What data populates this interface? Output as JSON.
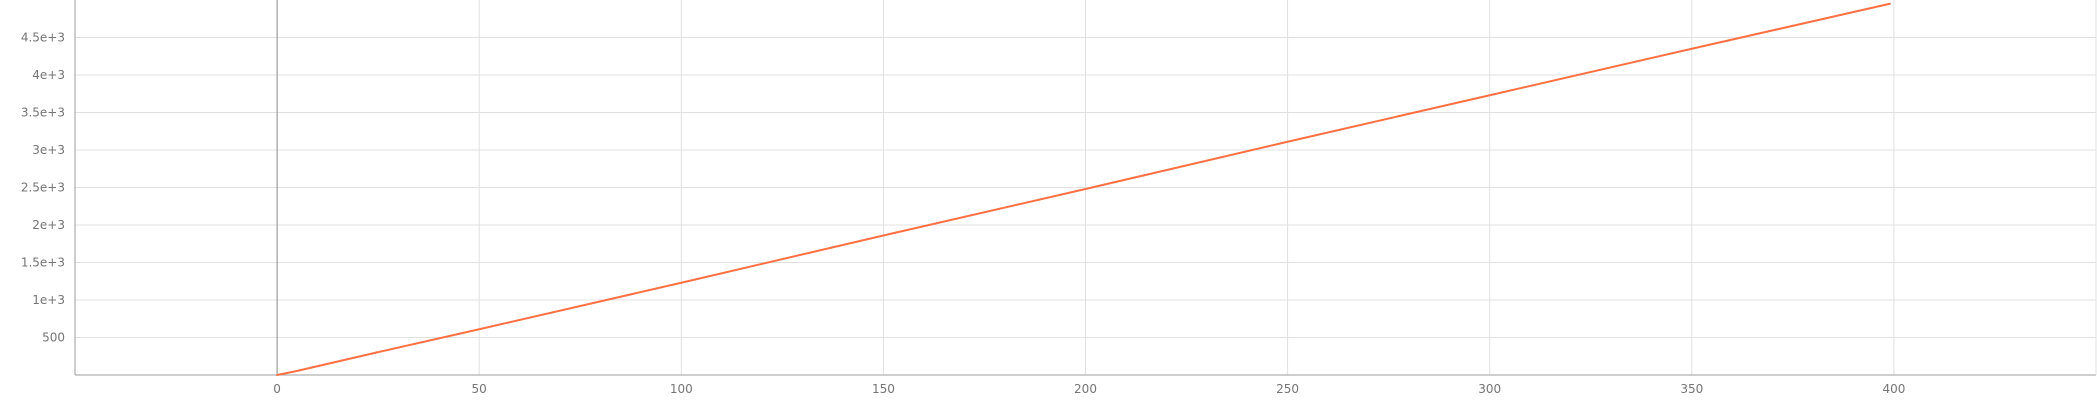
{
  "chart_data": {
    "type": "line",
    "title": "",
    "xlabel": "",
    "ylabel": "",
    "xlim": [
      -50,
      450
    ],
    "ylim": [
      0,
      5000
    ],
    "grid": true,
    "x_ticks": [
      0,
      50,
      100,
      150,
      200,
      250,
      300,
      350,
      400
    ],
    "x_tick_labels": [
      "0",
      "50",
      "100",
      "150",
      "200",
      "250",
      "300",
      "350",
      "400"
    ],
    "y_ticks": [
      500,
      1000,
      1500,
      2000,
      2500,
      3000,
      3500,
      4000,
      4500
    ],
    "y_tick_labels": [
      "500",
      "1e+3",
      "1.5e+3",
      "2e+3",
      "2.5e+3",
      "3e+3",
      "3.5e+3",
      "4e+3",
      "4.5e+3"
    ],
    "series": [
      {
        "color": "#ff7043",
        "x": [
          0,
          5,
          25,
          50,
          100,
          150,
          200,
          250,
          300,
          350,
          399
        ],
        "y": [
          0,
          55,
          305,
          610,
          1230,
          1860,
          2480,
          3110,
          3730,
          4350,
          4950
        ]
      }
    ]
  },
  "colors": {
    "line": "#ff7043",
    "grid": "#e0e0e0",
    "axis": "#9e9e9e",
    "tick_text": "#757575"
  }
}
